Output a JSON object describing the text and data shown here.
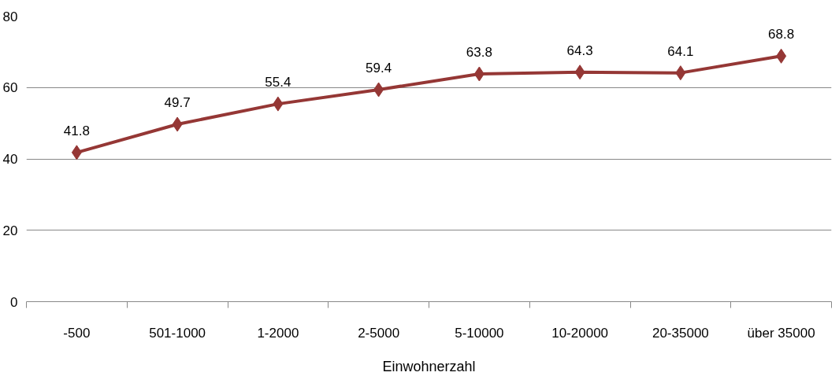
{
  "chart_data": {
    "type": "line",
    "xlabel": "Einwohnerzahl",
    "categories": [
      "-500",
      "501-1000",
      "1-2000",
      "2-5000",
      "5-10000",
      "10-20000",
      "20-35000",
      "über 35000"
    ],
    "series": [
      {
        "color": "#953735",
        "values": [
          41.8,
          49.7,
          55.4,
          59.4,
          63.8,
          64.3,
          64.1,
          68.8
        ]
      }
    ],
    "ylim": [
      0,
      80
    ],
    "yticks": [
      0,
      20,
      40,
      60,
      80
    ],
    "grid": "y",
    "marker": "diamond",
    "line_style": "solid",
    "data_labels": true
  }
}
